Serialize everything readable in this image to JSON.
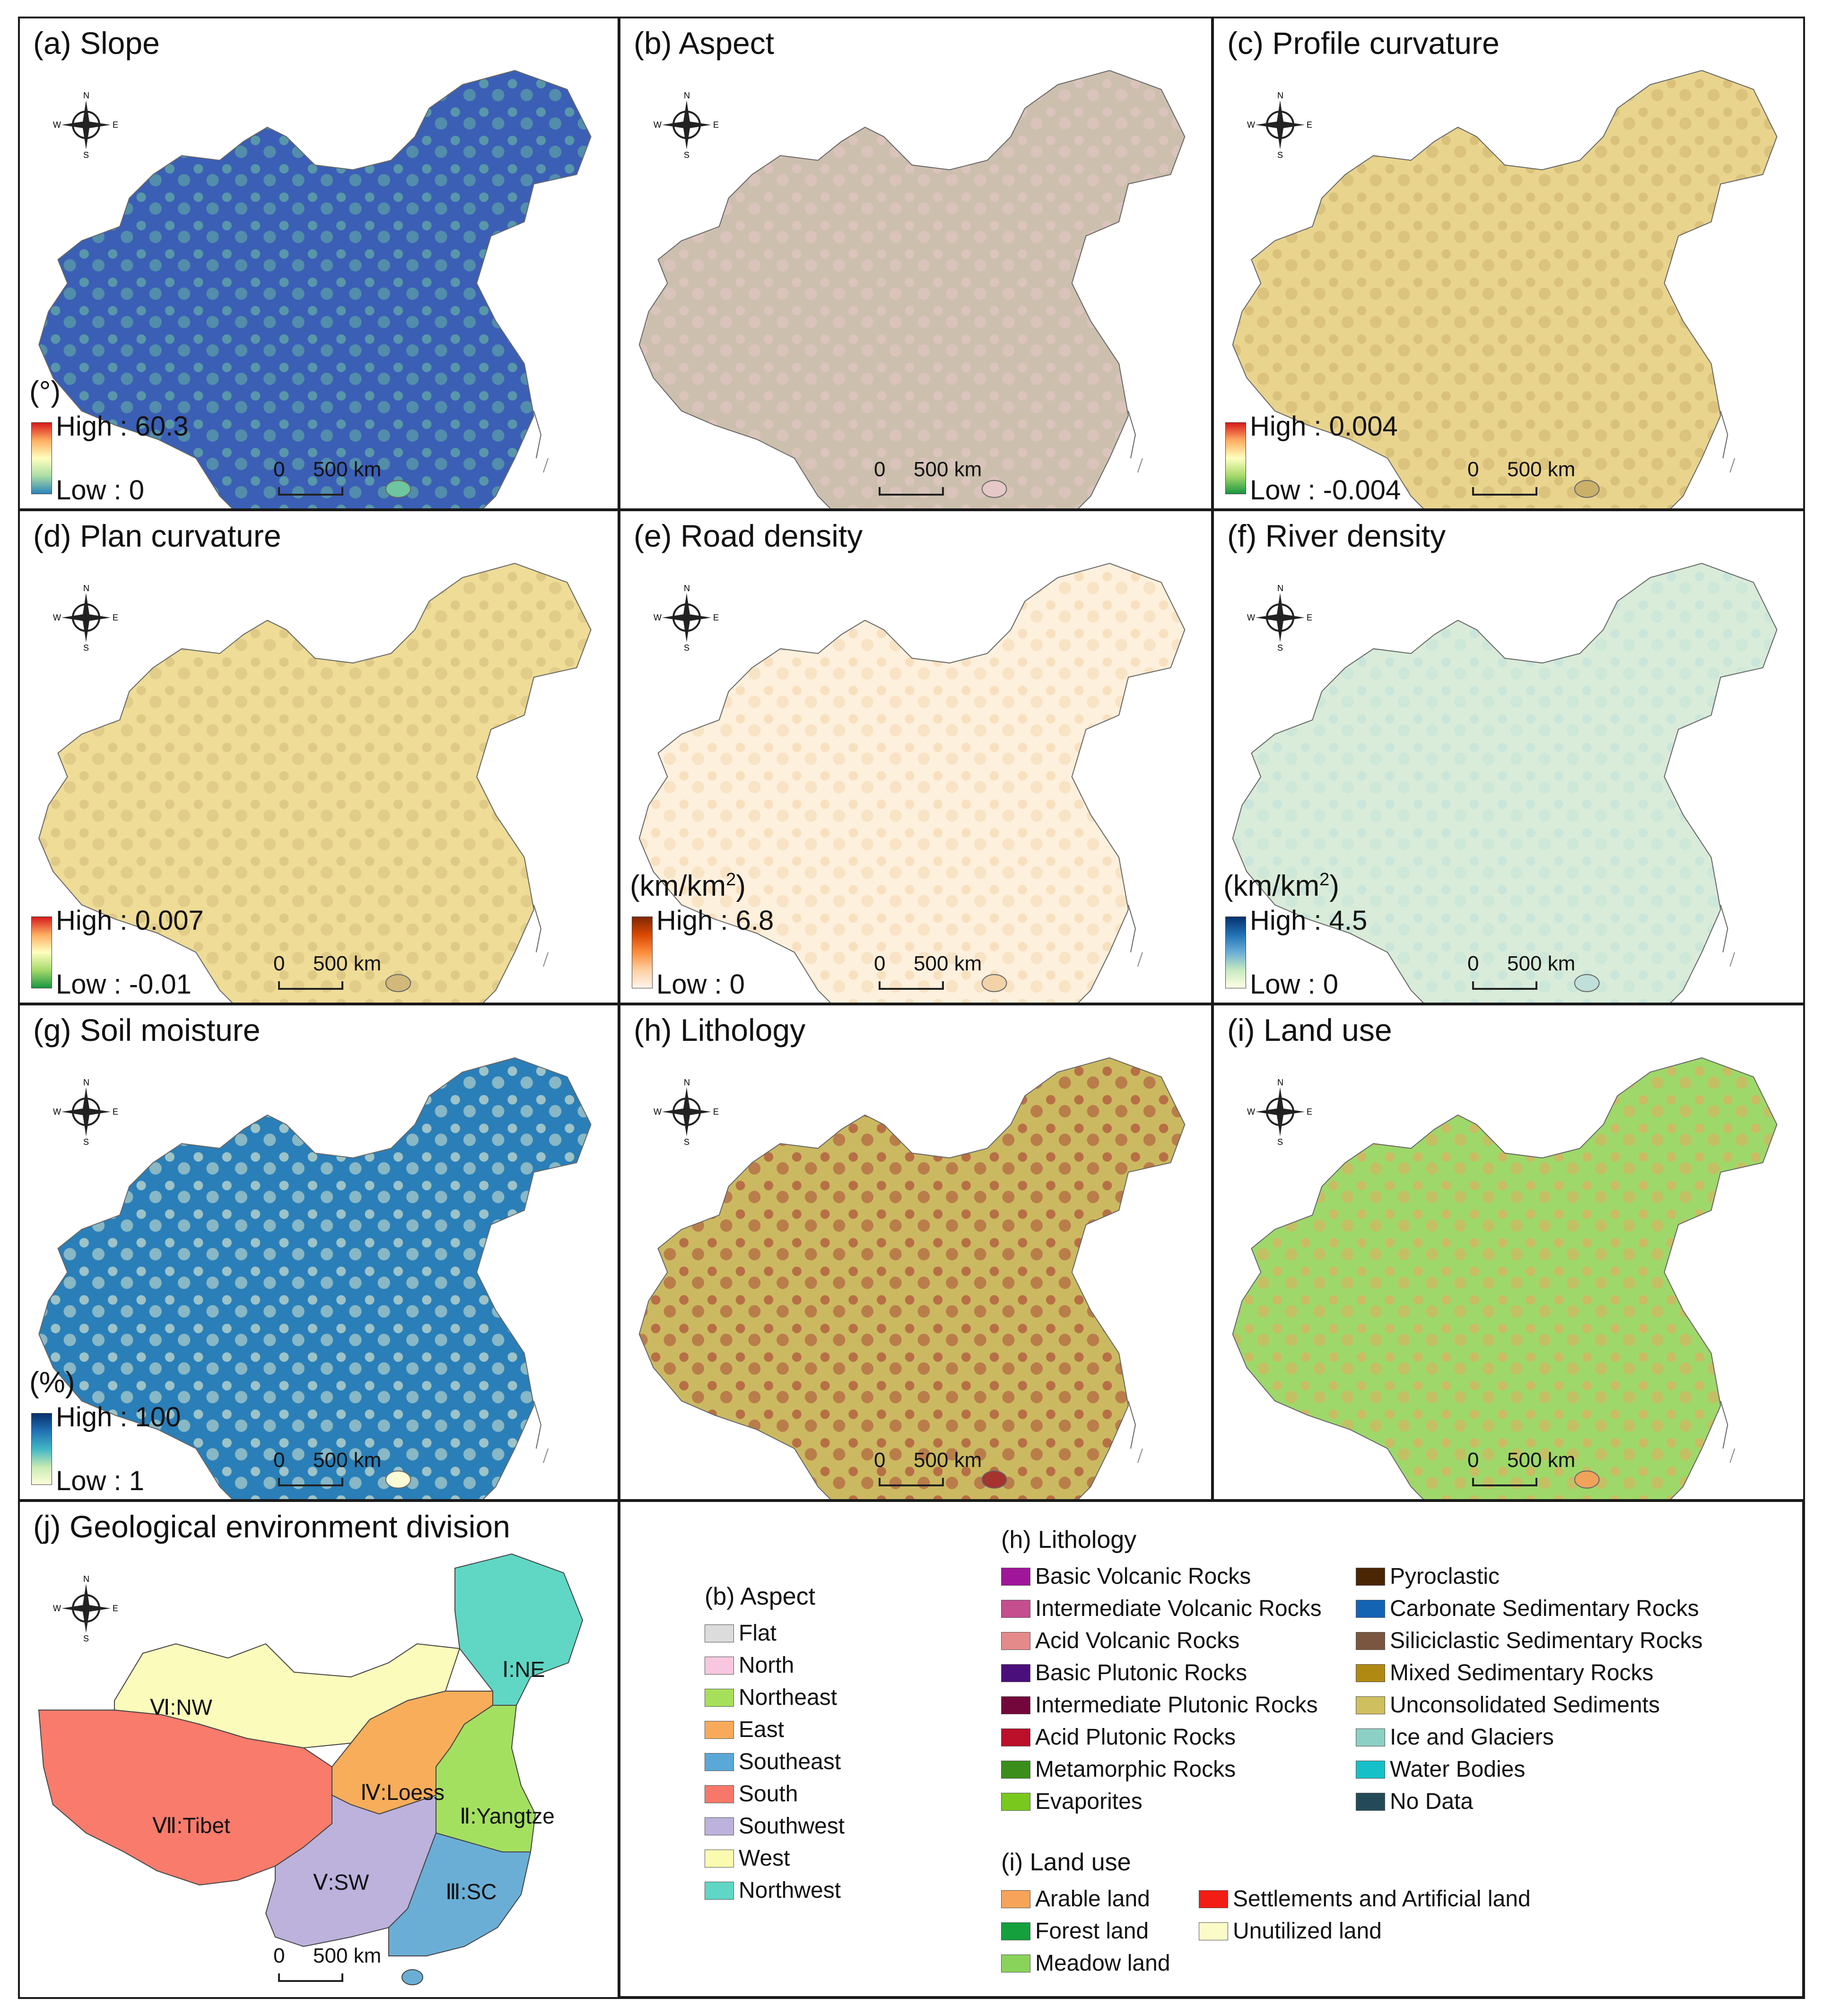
{
  "panels": [
    {
      "id": "a",
      "title": "(a) Slope",
      "unit": "(°)",
      "high": "High : 60.3",
      "low": "Low : 0",
      "grad": [
        "#d7191c",
        "#fdae61",
        "#ffffbf",
        "#abdda4",
        "#2b83ba"
      ],
      "body": "#3b5fb5",
      "fill2": "#6ec5a0"
    },
    {
      "id": "b",
      "title": "(b) Aspect",
      "unit": "",
      "high": "",
      "low": "",
      "grad": [],
      "body": "#cdbfae",
      "fill2": "#e6c8c8"
    },
    {
      "id": "c",
      "title": "(c) Profile curvature",
      "unit": "",
      "high": "High : 0.004",
      "low": "Low : -0.004",
      "grad": [
        "#d7191c",
        "#fdae61",
        "#ffffbf",
        "#a6d96a",
        "#1a9641"
      ],
      "body": "#e9d48e",
      "fill2": "#cbb06a"
    },
    {
      "id": "d",
      "title": "(d) Plan curvature",
      "unit": "",
      "high": "High : 0.007",
      "low": "Low : -0.01",
      "grad": [
        "#d7191c",
        "#fdae61",
        "#ffffbf",
        "#a6d96a",
        "#1a9641"
      ],
      "body": "#eedc97",
      "fill2": "#d2b97a"
    },
    {
      "id": "e",
      "title": "(e) Road density",
      "unit_pre": "(km/km",
      "unit_sup": "2",
      "unit_post": ")",
      "high": "High : 6.8",
      "low": "Low : 0",
      "grad": [
        "#7f2704",
        "#d94801",
        "#fd8d3c",
        "#fdd0a2",
        "#fff5eb"
      ],
      "body": "#fdf0dc",
      "fill2": "#f3d2a8"
    },
    {
      "id": "f",
      "title": "(f) River density",
      "unit_pre": "(km/km",
      "unit_sup": "2",
      "unit_post": ")",
      "high": "High : 4.5",
      "low": "Low : 0",
      "grad": [
        "#08306b",
        "#2171b5",
        "#6baed6",
        "#c7e9c0",
        "#ffffe5"
      ],
      "body": "#d8ecd9",
      "fill2": "#bfe0da"
    },
    {
      "id": "g",
      "title": "(g) Soil moisture",
      "unit": "(%)",
      "high": "High : 100",
      "low": "Low : 1",
      "grad": [
        "#08306b",
        "#2171b5",
        "#41b6c4",
        "#c7e9b4",
        "#ffffd9"
      ],
      "body": "#2a7fb8",
      "fill2": "#fbfbd5"
    },
    {
      "id": "h",
      "title": "(h) Lithology",
      "unit": "",
      "high": "",
      "low": "",
      "grad": [],
      "body": "#cbb961",
      "fill2": "#a5332e"
    },
    {
      "id": "i",
      "title": "(i) Land use",
      "unit": "",
      "high": "",
      "low": "",
      "grad": [],
      "body": "#9ed86a",
      "fill2": "#f0a35a"
    }
  ],
  "scale": {
    "zero": "0",
    "dist": "500",
    "unit": "km"
  },
  "compass": {
    "n": "N",
    "s": "S",
    "e": "E",
    "w": "W"
  },
  "division": {
    "title": "(j) Geological environment division",
    "regions": [
      {
        "label": "Ⅰ:NE",
        "color": "#5fd7c4"
      },
      {
        "label": "Ⅱ:Yangtze",
        "color": "#a4e060"
      },
      {
        "label": "Ⅲ:SC",
        "color": "#6aaed6"
      },
      {
        "label": "Ⅳ:Loess",
        "color": "#f7ad5a"
      },
      {
        "label": "Ⅴ:SW",
        "color": "#bcb2dc"
      },
      {
        "label": "Ⅵ:NW",
        "color": "#fbfcbb"
      },
      {
        "label": "Ⅶ:Tibet",
        "color": "#f97b6c"
      }
    ]
  },
  "legend": {
    "aspect": {
      "title": "(b) Aspect",
      "items": [
        {
          "label": "Flat",
          "color": "#dcdcdc"
        },
        {
          "label": "North",
          "color": "#f9c6e0"
        },
        {
          "label": "Northeast",
          "color": "#a6e05a"
        },
        {
          "label": "East",
          "color": "#f8aa5a"
        },
        {
          "label": "Southeast",
          "color": "#5aa8d8"
        },
        {
          "label": "South",
          "color": "#f7786a"
        },
        {
          "label": "Southwest",
          "color": "#bcb2dc"
        },
        {
          "label": "West",
          "color": "#fbfbb0"
        },
        {
          "label": "Northwest",
          "color": "#5fd7c4"
        }
      ]
    },
    "lithology": {
      "title": "(h) Lithology",
      "col1": [
        {
          "label": "Basic Volcanic Rocks",
          "color": "#a0169a"
        },
        {
          "label": "Intermediate Volcanic Rocks",
          "color": "#c54e8f"
        },
        {
          "label": "Acid Volcanic Rocks",
          "color": "#e58a8a"
        },
        {
          "label": "Basic Plutonic Rocks",
          "color": "#4b0f7b"
        },
        {
          "label": "Intermediate Plutonic Rocks",
          "color": "#73063a"
        },
        {
          "label": "Acid Plutonic Rocks",
          "color": "#bb0f2a"
        },
        {
          "label": "Metamorphic Rocks",
          "color": "#3b8e1a"
        },
        {
          "label": "Evaporites",
          "color": "#78c81e"
        }
      ],
      "col2": [
        {
          "label": "Pyroclastic",
          "color": "#4a2605"
        },
        {
          "label": "Carbonate Sedimentary Rocks",
          "color": "#1464b4"
        },
        {
          "label": "Siliciclastic Sedimentary Rocks",
          "color": "#7a5640"
        },
        {
          "label": "Mixed Sedimentary Rocks",
          "color": "#b08912"
        },
        {
          "label": "Unconsolidated Sediments",
          "color": "#cfbf5f"
        },
        {
          "label": "Ice and Glaciers",
          "color": "#8ccfc4"
        },
        {
          "label": "Water Bodies",
          "color": "#16c0c8"
        },
        {
          "label": "No Data",
          "color": "#244a58"
        }
      ]
    },
    "landuse": {
      "title": "(i) Land use",
      "col1": [
        {
          "label": "Arable land",
          "color": "#f7a35a"
        },
        {
          "label": "Forest land",
          "color": "#14a03c"
        },
        {
          "label": "Meadow land",
          "color": "#8ad35a"
        }
      ],
      "col2": [
        {
          "label": "Settlements and Artificial land",
          "color": "#f21d14"
        },
        {
          "label": "Unutilized land",
          "color": "#fbfbc8"
        }
      ]
    }
  }
}
